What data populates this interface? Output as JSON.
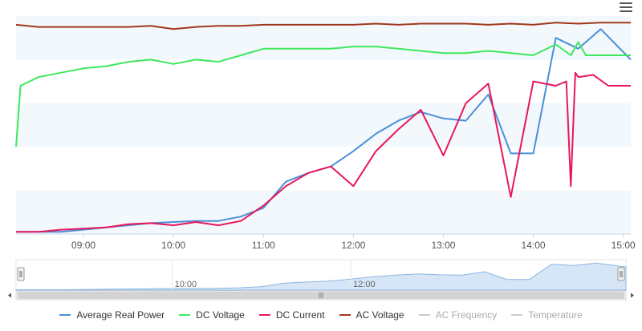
{
  "chart_data": {
    "type": "line",
    "x_axis": {
      "ticks": [
        "09:00",
        "10:00",
        "11:00",
        "12:00",
        "13:00",
        "14:00",
        "15:00"
      ],
      "range": [
        "08:15",
        "15:05"
      ]
    },
    "y_axis": {
      "labels_shown": false
    },
    "grid": "alternating horizontal bands",
    "legend_placement": "bottom-center",
    "series": [
      {
        "name": "Average Real Power",
        "color": "#4a90d9",
        "visible": true,
        "points": [
          [
            "08:15",
            0.01
          ],
          [
            "08:30",
            0.01
          ],
          [
            "08:45",
            0.01
          ],
          [
            "09:00",
            0.02
          ],
          [
            "09:15",
            0.03
          ],
          [
            "09:30",
            0.04
          ],
          [
            "09:45",
            0.05
          ],
          [
            "10:00",
            0.055
          ],
          [
            "10:15",
            0.06
          ],
          [
            "10:30",
            0.06
          ],
          [
            "10:45",
            0.08
          ],
          [
            "11:00",
            0.12
          ],
          [
            "11:15",
            0.24
          ],
          [
            "11:30",
            0.28
          ],
          [
            "11:45",
            0.31
          ],
          [
            "12:00",
            0.38
          ],
          [
            "12:15",
            0.46
          ],
          [
            "12:30",
            0.52
          ],
          [
            "12:45",
            0.56
          ],
          [
            "13:00",
            0.53
          ],
          [
            "13:15",
            0.52
          ],
          [
            "13:30",
            0.64
          ],
          [
            "13:45",
            0.37
          ],
          [
            "14:00",
            0.37
          ],
          [
            "14:15",
            0.9
          ],
          [
            "14:30",
            0.85
          ],
          [
            "14:45",
            0.94
          ],
          [
            "15:05",
            0.8
          ]
        ]
      },
      {
        "name": "DC Voltage",
        "color": "#3ee85e",
        "visible": true,
        "points": [
          [
            "08:15",
            0.4
          ],
          [
            "08:18",
            0.68
          ],
          [
            "08:30",
            0.72
          ],
          [
            "08:45",
            0.74
          ],
          [
            "09:00",
            0.76
          ],
          [
            "09:15",
            0.77
          ],
          [
            "09:30",
            0.79
          ],
          [
            "09:45",
            0.8
          ],
          [
            "10:00",
            0.78
          ],
          [
            "10:15",
            0.8
          ],
          [
            "10:30",
            0.79
          ],
          [
            "10:45",
            0.82
          ],
          [
            "11:00",
            0.85
          ],
          [
            "11:15",
            0.85
          ],
          [
            "11:30",
            0.85
          ],
          [
            "11:45",
            0.85
          ],
          [
            "12:00",
            0.86
          ],
          [
            "12:15",
            0.86
          ],
          [
            "12:30",
            0.85
          ],
          [
            "12:45",
            0.84
          ],
          [
            "13:00",
            0.83
          ],
          [
            "13:15",
            0.83
          ],
          [
            "13:30",
            0.84
          ],
          [
            "13:45",
            0.83
          ],
          [
            "14:00",
            0.82
          ],
          [
            "14:15",
            0.87
          ],
          [
            "14:25",
            0.82
          ],
          [
            "14:30",
            0.88
          ],
          [
            "14:35",
            0.82
          ],
          [
            "14:45",
            0.82
          ],
          [
            "15:05",
            0.82
          ]
        ]
      },
      {
        "name": "DC Current",
        "color": "#e8175d",
        "visible": true,
        "points": [
          [
            "08:15",
            0.01
          ],
          [
            "08:30",
            0.01
          ],
          [
            "08:45",
            0.02
          ],
          [
            "09:00",
            0.025
          ],
          [
            "09:15",
            0.03
          ],
          [
            "09:30",
            0.045
          ],
          [
            "09:45",
            0.05
          ],
          [
            "10:00",
            0.04
          ],
          [
            "10:15",
            0.055
          ],
          [
            "10:30",
            0.04
          ],
          [
            "10:45",
            0.06
          ],
          [
            "11:00",
            0.13
          ],
          [
            "11:15",
            0.22
          ],
          [
            "11:30",
            0.28
          ],
          [
            "11:45",
            0.31
          ],
          [
            "12:00",
            0.22
          ],
          [
            "12:15",
            0.38
          ],
          [
            "12:30",
            0.48
          ],
          [
            "12:45",
            0.57
          ],
          [
            "13:00",
            0.36
          ],
          [
            "13:15",
            0.6
          ],
          [
            "13:30",
            0.69
          ],
          [
            "13:45",
            0.17
          ],
          [
            "14:00",
            0.7
          ],
          [
            "14:15",
            0.68
          ],
          [
            "14:22",
            0.7
          ],
          [
            "14:25",
            0.22
          ],
          [
            "14:28",
            0.74
          ],
          [
            "14:30",
            0.72
          ],
          [
            "14:40",
            0.73
          ],
          [
            "14:50",
            0.68
          ],
          [
            "15:05",
            0.68
          ]
        ]
      },
      {
        "name": "AC Voltage",
        "color": "#a0371c",
        "visible": true,
        "points": [
          [
            "08:15",
            0.96
          ],
          [
            "08:30",
            0.95
          ],
          [
            "08:45",
            0.95
          ],
          [
            "09:00",
            0.95
          ],
          [
            "09:15",
            0.95
          ],
          [
            "09:30",
            0.95
          ],
          [
            "09:45",
            0.955
          ],
          [
            "10:00",
            0.94
          ],
          [
            "10:15",
            0.95
          ],
          [
            "10:30",
            0.955
          ],
          [
            "10:45",
            0.955
          ],
          [
            "11:00",
            0.96
          ],
          [
            "11:15",
            0.96
          ],
          [
            "11:30",
            0.96
          ],
          [
            "11:45",
            0.96
          ],
          [
            "12:00",
            0.96
          ],
          [
            "12:15",
            0.965
          ],
          [
            "12:30",
            0.96
          ],
          [
            "12:45",
            0.965
          ],
          [
            "13:00",
            0.965
          ],
          [
            "13:15",
            0.965
          ],
          [
            "13:30",
            0.96
          ],
          [
            "13:45",
            0.965
          ],
          [
            "14:00",
            0.96
          ],
          [
            "14:15",
            0.97
          ],
          [
            "14:30",
            0.965
          ],
          [
            "14:45",
            0.97
          ],
          [
            "15:05",
            0.97
          ]
        ]
      },
      {
        "name": "AC Frequency",
        "color": "#9e9e9e",
        "visible": false,
        "points": []
      },
      {
        "name": "Temperature",
        "color": "#9e9e9e",
        "visible": false,
        "points": []
      }
    ],
    "navigator": {
      "ticks": [
        "10:00",
        "12:00"
      ],
      "source_series": "Average Real Power"
    }
  }
}
